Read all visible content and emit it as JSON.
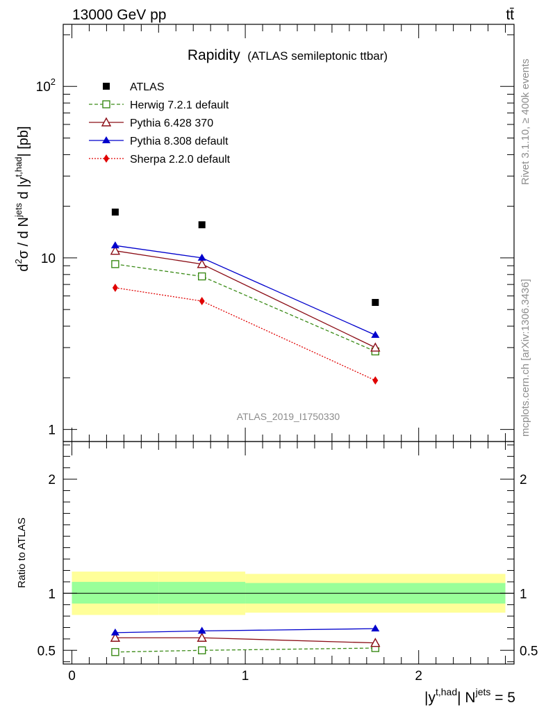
{
  "header": {
    "energy_label": "13000 GeV pp",
    "process_label": "tt̄"
  },
  "chart_data": [
    {
      "type": "line",
      "title": "Rapidity",
      "subtitle": "(ATLAS semileptonic ttbar)",
      "ylabel_main": "d²σ / d N^jets d |y^t,had| [pb]",
      "ylabel_parts": {
        "d2": "d",
        "sup2": "2",
        "sigma": "σ / d N",
        "sup_jets": "jets",
        "d_y": " d |y",
        "sup_thad": "t,had",
        "unit": "| [pb]"
      },
      "y_scale": "log",
      "ylim": [
        0.85,
        230
      ],
      "xlim": [
        -0.05,
        2.55
      ],
      "y_ticks": [
        {
          "value": 1,
          "label": "1"
        },
        {
          "value": 10,
          "label": "10"
        },
        {
          "value": 100,
          "label": "10",
          "sup": "2"
        }
      ],
      "watermark": "ATLAS_2019_I1750330",
      "legend_position": "top-left",
      "x": [
        0.25,
        0.75,
        1.75
      ],
      "series": [
        {
          "name": "ATLAS",
          "values": [
            18.5,
            15.6,
            5.5
          ],
          "color": "#000000",
          "marker": "filled-square",
          "line": "none"
        },
        {
          "name": "Herwig 7.2.1 default",
          "values": [
            9.2,
            7.8,
            2.85
          ],
          "color": "#3a8a16",
          "marker": "open-square",
          "line": "dashed"
        },
        {
          "name": "Pythia 6.428 370",
          "values": [
            11.0,
            9.2,
            3.0
          ],
          "color": "#8b0d16",
          "marker": "open-triangle",
          "line": "solid"
        },
        {
          "name": "Pythia 8.308 default",
          "values": [
            11.8,
            10.0,
            3.55
          ],
          "color": "#0000cc",
          "marker": "filled-triangle",
          "line": "solid"
        },
        {
          "name": "Sherpa 2.2.0 default",
          "values": [
            6.7,
            5.6,
            1.93
          ],
          "color": "#e00000",
          "marker": "filled-diamond",
          "line": "dotted"
        }
      ]
    },
    {
      "type": "line",
      "ylabel": "Ratio to ATLAS",
      "ylim": [
        0.38,
        2.33
      ],
      "xlim": [
        -0.05,
        2.55
      ],
      "y_ticks": [
        {
          "value": 0.5,
          "label": "0.5"
        },
        {
          "value": 1,
          "label": "1"
        },
        {
          "value": 2,
          "label": "2"
        }
      ],
      "x_ticks": [
        {
          "value": 0,
          "label": "0"
        },
        {
          "value": 1,
          "label": "1"
        },
        {
          "value": 2,
          "label": "2"
        }
      ],
      "bands": [
        {
          "name": "outer",
          "color": "#ffff99",
          "segments": [
            {
              "x0": 0,
              "x1": 0.5,
              "lo": 0.81,
              "hi": 1.19
            },
            {
              "x0": 0.5,
              "x1": 1.0,
              "lo": 0.81,
              "hi": 1.19
            },
            {
              "x0": 1.0,
              "x1": 2.5,
              "lo": 0.83,
              "hi": 1.17
            }
          ]
        },
        {
          "name": "inner",
          "color": "#99ff99",
          "segments": [
            {
              "x0": 0,
              "x1": 0.5,
              "lo": 0.91,
              "hi": 1.1
            },
            {
              "x0": 0.5,
              "x1": 1.0,
              "lo": 0.91,
              "hi": 1.1
            },
            {
              "x0": 1.0,
              "x1": 2.5,
              "lo": 0.91,
              "hi": 1.09
            }
          ]
        }
      ],
      "x": [
        0.25,
        0.75,
        1.75
      ],
      "series": [
        {
          "name": "Herwig 7.2.1 default",
          "values": [
            0.485,
            0.5,
            0.52
          ],
          "color": "#3a8a16",
          "marker": "open-square",
          "line": "dashed"
        },
        {
          "name": "Pythia 6.428 370",
          "values": [
            0.61,
            0.61,
            0.565
          ],
          "color": "#8b0d16",
          "marker": "open-triangle",
          "line": "solid"
        },
        {
          "name": "Pythia 8.308 default",
          "values": [
            0.655,
            0.67,
            0.69
          ],
          "color": "#0000cc",
          "marker": "filled-triangle",
          "line": "solid"
        }
      ]
    }
  ],
  "xlabel_parts": {
    "y": "|y",
    "sup_thad": "t,had",
    "n": "| N",
    "sup_jets": "jets",
    "eq": " = 5"
  },
  "side_labels": {
    "rivet": "Rivet 3.1.10, ≥ 400k events",
    "mcplots": "mcplots.cern.ch [arXiv:1306.3436]"
  }
}
